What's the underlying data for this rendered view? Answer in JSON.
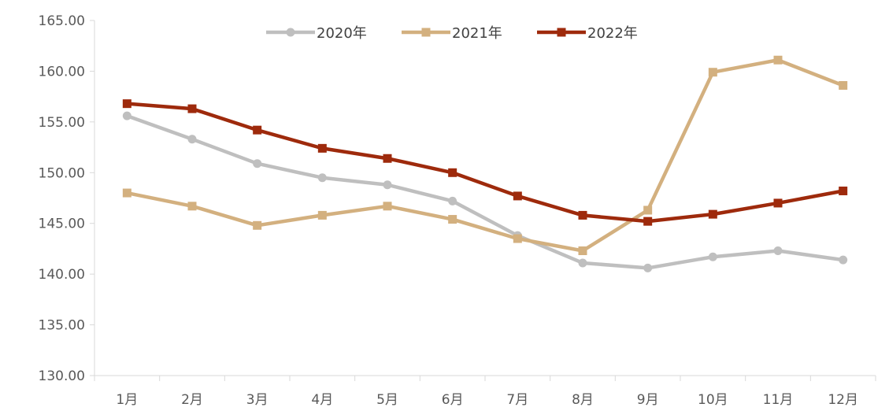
{
  "chart_data": {
    "type": "line",
    "categories": [
      "1月",
      "2月",
      "3月",
      "4月",
      "5月",
      "6月",
      "7月",
      "8月",
      "9月",
      "10月",
      "11月",
      "12月"
    ],
    "ylim": [
      130,
      165
    ],
    "yticks": [
      "130.00",
      "135.00",
      "140.00",
      "145.00",
      "150.00",
      "155.00",
      "160.00",
      "165.00"
    ],
    "grid": false,
    "legend_position": "top",
    "series": [
      {
        "name": "2020年",
        "color": "#bfbfbf",
        "marker": "circle",
        "values": [
          155.6,
          153.3,
          150.9,
          149.5,
          148.8,
          147.2,
          143.8,
          141.1,
          140.6,
          141.7,
          142.3,
          141.4
        ]
      },
      {
        "name": "2021年",
        "color": "#d3b07f",
        "marker": "square",
        "values": [
          148.0,
          146.7,
          144.8,
          145.8,
          146.7,
          145.4,
          143.5,
          142.3,
          146.3,
          159.9,
          161.1,
          158.6
        ]
      },
      {
        "name": "2022年",
        "color": "#9e2a0c",
        "marker": "square",
        "values": [
          156.8,
          156.3,
          154.2,
          152.4,
          151.4,
          150.0,
          147.7,
          145.8,
          145.2,
          145.9,
          147.0,
          148.2
        ]
      }
    ]
  }
}
